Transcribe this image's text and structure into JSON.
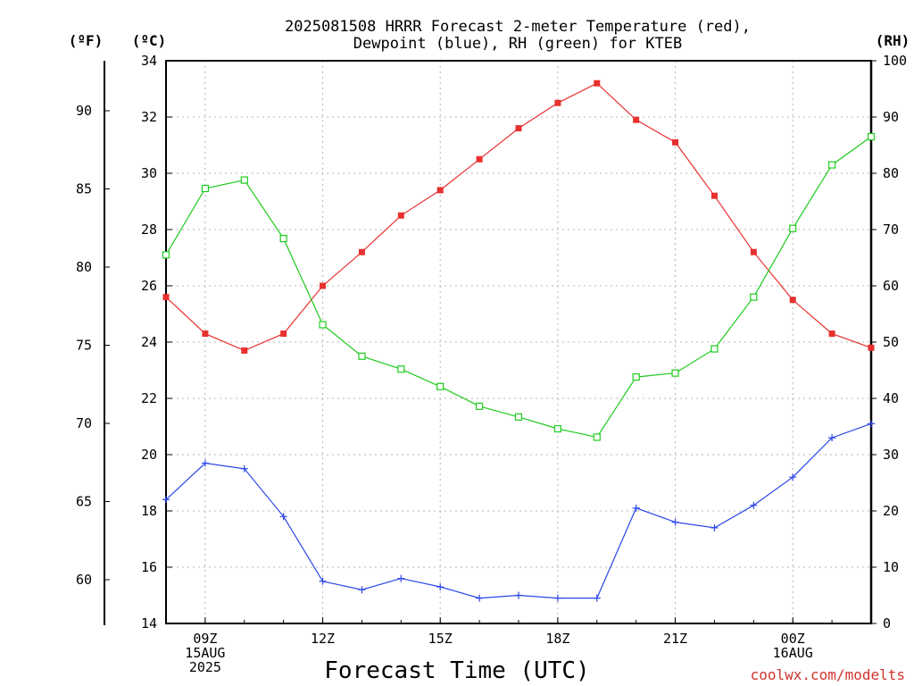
{
  "title_line1": "2025081508 HRRR Forecast 2-meter Temperature (red),",
  "title_line2": "Dewpoint (blue), RH (green) for KTEB",
  "units": {
    "f": "(ºF)",
    "c": "(ºC)",
    "rh": "(RH)"
  },
  "xlabel": "Forecast Time (UTC)",
  "credit": "coolwx.com/modelts",
  "colors": {
    "temperature": "#e8302e",
    "dewpoint": "#2a46e8",
    "rh": "#1ecb1e"
  },
  "chart_data": {
    "type": "line",
    "title": "2025081508 HRRR Forecast 2-meter Temperature (red), Dewpoint (blue), RH (green) for KTEB",
    "xlabel": "Forecast Time (UTC)",
    "x_hours": [
      8,
      9,
      10,
      11,
      12,
      13,
      14,
      15,
      16,
      17,
      18,
      19,
      20,
      21,
      22,
      23,
      24,
      25,
      26
    ],
    "x_ticks": [
      {
        "hour": 9,
        "lines": [
          "09Z",
          "15AUG",
          "2025"
        ]
      },
      {
        "hour": 12,
        "lines": [
          "12Z"
        ]
      },
      {
        "hour": 15,
        "lines": [
          "15Z"
        ]
      },
      {
        "hour": 18,
        "lines": [
          "18Z"
        ]
      },
      {
        "hour": 21,
        "lines": [
          "21Z"
        ]
      },
      {
        "hour": 24,
        "lines": [
          "00Z",
          "16AUG"
        ]
      }
    ],
    "y_left_c": {
      "range": [
        14,
        34
      ],
      "ticks": [
        "14",
        "16",
        "18",
        "20",
        "22",
        "24",
        "26",
        "28",
        "30",
        "32",
        "34"
      ]
    },
    "y_left_f": {
      "ticks": [
        "60",
        "65",
        "70",
        "75",
        "80",
        "85",
        "90"
      ]
    },
    "y_right_rh": {
      "range": [
        0,
        100
      ],
      "ticks": [
        "0",
        "10",
        "20",
        "30",
        "40",
        "50",
        "60",
        "70",
        "80",
        "90",
        "100"
      ]
    },
    "grid": true,
    "series": [
      {
        "key": "temperature",
        "unit": "C",
        "marker": "filled-square",
        "values": [
          25.6,
          24.3,
          23.7,
          24.3,
          26.0,
          27.2,
          28.5,
          29.4,
          30.5,
          31.6,
          32.5,
          33.2,
          31.9,
          31.1,
          29.2,
          27.2,
          25.5,
          24.3,
          23.8
        ]
      },
      {
        "key": "dewpoint",
        "unit": "C",
        "marker": "plus",
        "values": [
          18.4,
          19.7,
          19.5,
          17.8,
          15.5,
          15.2,
          15.6,
          15.3,
          14.9,
          15.0,
          14.9,
          14.9,
          18.1,
          17.6,
          17.4,
          18.2,
          19.2,
          20.6,
          21.1
        ]
      },
      {
        "key": "rh",
        "unit": "%",
        "marker": "open-square",
        "values": [
          65.5,
          77.3,
          78.8,
          68.4,
          53.1,
          47.5,
          45.2,
          42.1,
          38.6,
          36.7,
          34.6,
          33.1,
          43.8,
          44.5,
          48.8,
          58.0,
          70.2,
          81.5,
          86.5
        ]
      }
    ]
  }
}
